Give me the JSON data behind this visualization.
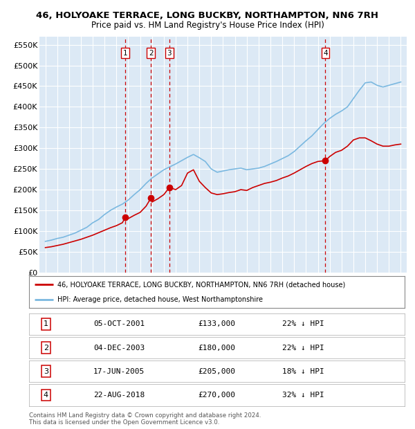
{
  "title": "46, HOLYOAKE TERRACE, LONG BUCKBY, NORTHAMPTON, NN6 7RH",
  "subtitle": "Price paid vs. HM Land Registry's House Price Index (HPI)",
  "ylabel_ticks": [
    "£0",
    "£50K",
    "£100K",
    "£150K",
    "£200K",
    "£250K",
    "£300K",
    "£350K",
    "£400K",
    "£450K",
    "£500K",
    "£550K"
  ],
  "ylabel_values": [
    0,
    50000,
    100000,
    150000,
    200000,
    250000,
    300000,
    350000,
    400000,
    450000,
    500000,
    550000
  ],
  "ylim": [
    0,
    570000
  ],
  "plot_bg": "#dce9f5",
  "grid_color": "#ffffff",
  "purchases": [
    {
      "label": "1",
      "date": "05-OCT-2001",
      "x_year": 2001.75,
      "price": 133000,
      "pct": "22%",
      "dir": "↓"
    },
    {
      "label": "2",
      "date": "04-DEC-2003",
      "x_year": 2003.92,
      "price": 180000,
      "pct": "22%",
      "dir": "↓"
    },
    {
      "label": "3",
      "date": "17-JUN-2005",
      "x_year": 2005.46,
      "price": 205000,
      "pct": "18%",
      "dir": "↓"
    },
    {
      "label": "4",
      "date": "22-AUG-2018",
      "x_year": 2018.64,
      "price": 270000,
      "pct": "32%",
      "dir": "↓"
    }
  ],
  "legend_line1": "46, HOLYOAKE TERRACE, LONG BUCKBY, NORTHAMPTON, NN6 7RH (detached house)",
  "legend_line2": "HPI: Average price, detached house, West Northamptonshire",
  "footer": "Contains HM Land Registry data © Crown copyright and database right 2024.\nThis data is licensed under the Open Government Licence v3.0.",
  "hpi_color": "#7ab8e0",
  "price_color": "#cc0000",
  "vline_color": "#cc0000",
  "xlim_start": 1994.5,
  "xlim_end": 2025.5,
  "xticks": [
    1995,
    1996,
    1997,
    1998,
    1999,
    2000,
    2001,
    2002,
    2003,
    2004,
    2005,
    2006,
    2007,
    2008,
    2009,
    2010,
    2011,
    2012,
    2013,
    2014,
    2015,
    2016,
    2017,
    2018,
    2019,
    2020,
    2021,
    2022,
    2023,
    2024,
    2025
  ],
  "hpi_years": [
    1995,
    1995.5,
    1996,
    1996.5,
    1997,
    1997.5,
    1998,
    1998.5,
    1999,
    1999.5,
    2000,
    2000.5,
    2001,
    2001.5,
    2002,
    2002.5,
    2003,
    2003.5,
    2004,
    2004.5,
    2005,
    2005.5,
    2006,
    2006.5,
    2007,
    2007.5,
    2008,
    2008.5,
    2009,
    2009.5,
    2010,
    2010.5,
    2011,
    2011.5,
    2012,
    2012.5,
    2013,
    2013.5,
    2014,
    2014.5,
    2015,
    2015.5,
    2016,
    2016.5,
    2017,
    2017.5,
    2018,
    2018.5,
    2019,
    2019.5,
    2020,
    2020.5,
    2021,
    2021.5,
    2022,
    2022.5,
    2023,
    2023.5,
    2024,
    2024.5,
    2025
  ],
  "hpi_values": [
    75000,
    78000,
    82000,
    85000,
    90000,
    95000,
    102000,
    109000,
    120000,
    128000,
    140000,
    150000,
    158000,
    165000,
    175000,
    188000,
    200000,
    215000,
    228000,
    238000,
    248000,
    255000,
    262000,
    270000,
    278000,
    285000,
    277000,
    268000,
    250000,
    242000,
    245000,
    248000,
    250000,
    252000,
    248000,
    250000,
    252000,
    256000,
    262000,
    268000,
    275000,
    282000,
    292000,
    305000,
    318000,
    330000,
    345000,
    360000,
    372000,
    382000,
    390000,
    400000,
    420000,
    440000,
    458000,
    460000,
    452000,
    448000,
    452000,
    456000,
    460000
  ],
  "prop_years": [
    1995,
    1995.5,
    1996,
    1996.5,
    1997,
    1997.5,
    1998,
    1998.5,
    1999,
    1999.5,
    2000,
    2000.5,
    2001,
    2001.5,
    2001.75,
    2002,
    2002.5,
    2003,
    2003.5,
    2003.92,
    2004,
    2004.5,
    2005,
    2005.46,
    2006,
    2006.5,
    2007,
    2007.5,
    2008,
    2008.5,
    2009,
    2009.5,
    2010,
    2010.5,
    2011,
    2011.5,
    2012,
    2012.5,
    2013,
    2013.5,
    2014,
    2014.5,
    2015,
    2015.5,
    2016,
    2016.5,
    2017,
    2017.5,
    2018,
    2018.64,
    2019,
    2019.5,
    2020,
    2020.5,
    2021,
    2021.5,
    2022,
    2022.5,
    2023,
    2023.5,
    2024,
    2024.5,
    2025
  ],
  "prop_values": [
    60000,
    62000,
    65000,
    68000,
    72000,
    76000,
    80000,
    85000,
    90000,
    96000,
    102000,
    108000,
    113000,
    120000,
    133000,
    130000,
    138000,
    145000,
    160000,
    180000,
    170000,
    178000,
    188000,
    205000,
    200000,
    210000,
    240000,
    248000,
    220000,
    205000,
    192000,
    188000,
    190000,
    193000,
    195000,
    200000,
    198000,
    205000,
    210000,
    215000,
    218000,
    222000,
    228000,
    233000,
    240000,
    248000,
    256000,
    263000,
    268000,
    270000,
    280000,
    290000,
    295000,
    305000,
    320000,
    325000,
    325000,
    318000,
    310000,
    305000,
    305000,
    308000,
    310000
  ]
}
